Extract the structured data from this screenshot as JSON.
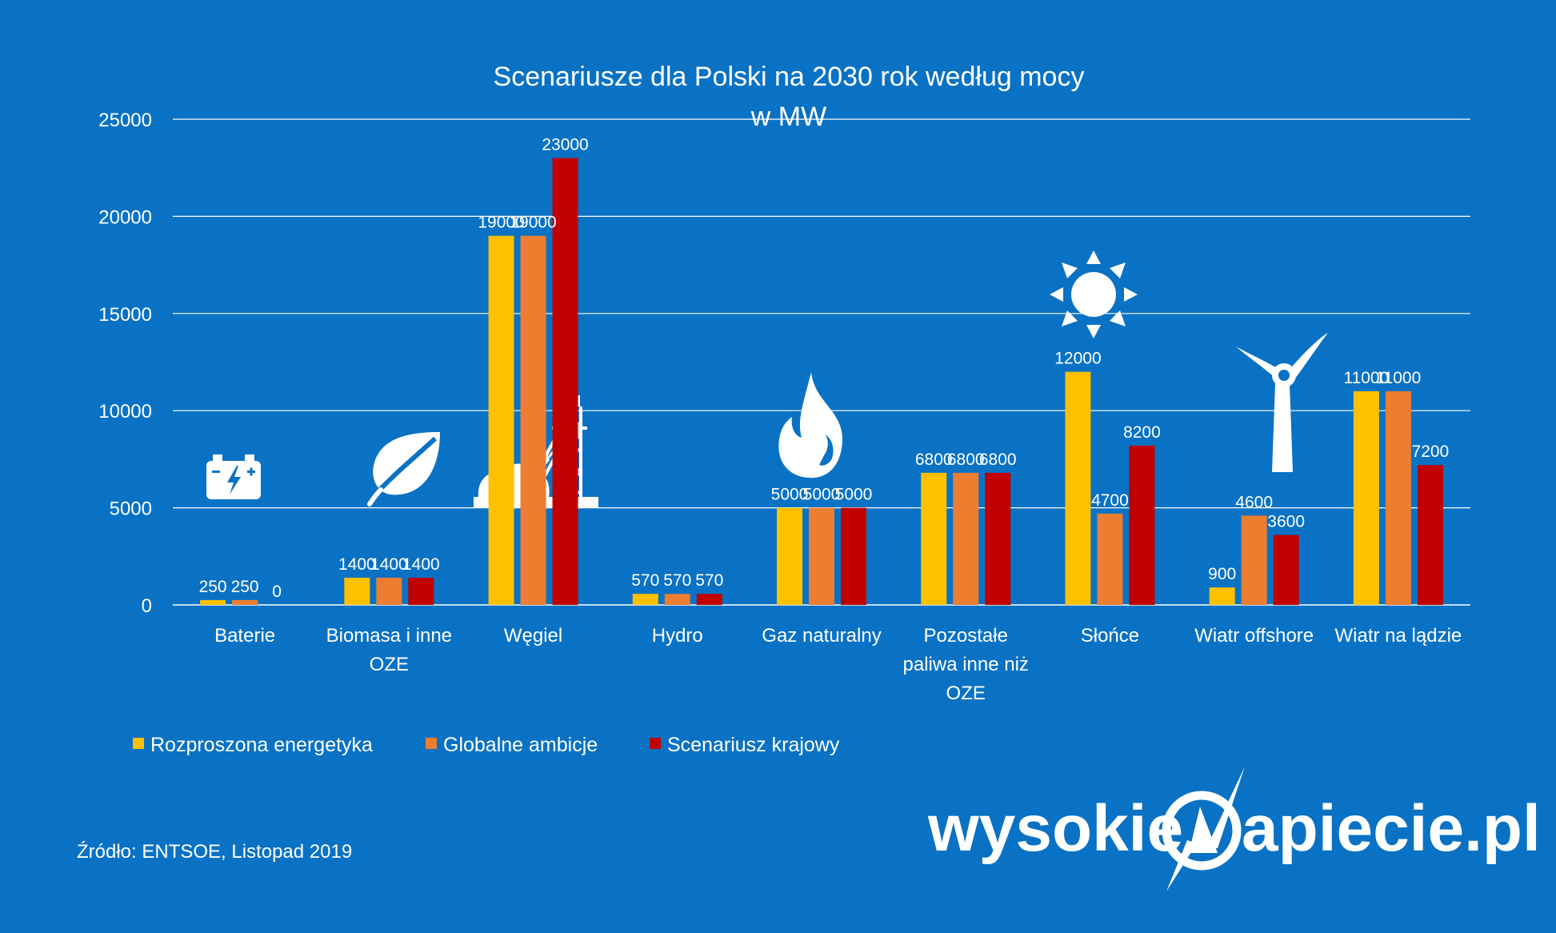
{
  "chart_data": {
    "type": "bar",
    "title": "Scenariusze dla Polski na 2030 rok według mocy",
    "subtitle": "w MW",
    "categories": [
      [
        "Baterie"
      ],
      [
        "Biomasa i inne",
        "OZE"
      ],
      [
        "Węgiel"
      ],
      [
        "Hydro"
      ],
      [
        "Gaz naturalny"
      ],
      [
        "Pozostałe",
        "paliwa inne niż",
        "OZE"
      ],
      [
        "Słońce"
      ],
      [
        "Wiatr offshore"
      ],
      [
        "Wiatr na lądzie"
      ]
    ],
    "series": [
      {
        "name": "Rozproszona energetyka",
        "color": "#ffc000",
        "values": [
          250,
          1400,
          19000,
          570,
          5000,
          6800,
          12000,
          900,
          11000
        ]
      },
      {
        "name": "Globalne ambicje",
        "color": "#ed7d31",
        "values": [
          250,
          1400,
          19000,
          570,
          5000,
          6800,
          4700,
          4600,
          11000
        ]
      },
      {
        "name": "Scenariusz krajowy",
        "color": "#c00000",
        "values": [
          0,
          1400,
          23000,
          570,
          5000,
          6800,
          8200,
          3600,
          7200
        ]
      }
    ],
    "ylim": [
      0,
      25000
    ],
    "yticks": [
      "0",
      "5000",
      "10000",
      "15000",
      "20000",
      "25000"
    ],
    "grid": true,
    "legend": "bottom-left",
    "icons": [
      "battery-icon",
      "leaf-icon",
      "coal-mine-icon",
      "flame-icon",
      "sun-icon",
      "wind-turbine-icon"
    ]
  },
  "source": "Źródło: ENTSOE, Listopad 2019",
  "logo": {
    "left": "wysokie",
    "right": "apiecie.pl"
  }
}
